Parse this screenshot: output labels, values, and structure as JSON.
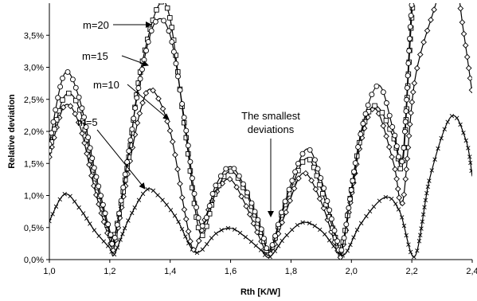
{
  "chart_data": {
    "type": "line",
    "title": "",
    "xlabel": "Rth [K/W]",
    "ylabel": "Relative deviation",
    "xlim": [
      1.0,
      2.4
    ],
    "ylim": [
      0.0,
      0.04
    ],
    "x_ticks": [
      "1,0",
      "1,2",
      "1,4",
      "1,6",
      "1,8",
      "2,0",
      "2,2",
      "2,4"
    ],
    "y_ticks": [
      "0,0%",
      "0,5%",
      "1,0%",
      "1,5%",
      "2,0%",
      "2,5%",
      "3,0%",
      "3,5%"
    ],
    "grid": false,
    "legend": "none",
    "series": [
      {
        "name": "m=5",
        "marker": "cross",
        "color": "#000000",
        "points": [
          [
            1.0,
            0.006
          ],
          [
            1.05,
            0.0102
          ],
          [
            1.1,
            0.008
          ],
          [
            1.15,
            0.0045
          ],
          [
            1.2,
            0.0018
          ],
          [
            1.215,
            0.0008
          ],
          [
            1.26,
            0.006
          ],
          [
            1.32,
            0.0108
          ],
          [
            1.36,
            0.01
          ],
          [
            1.42,
            0.0065
          ],
          [
            1.47,
            0.0018
          ],
          [
            1.5,
            0.0013
          ],
          [
            1.55,
            0.004
          ],
          [
            1.6,
            0.0049
          ],
          [
            1.65,
            0.0035
          ],
          [
            1.7,
            0.0015
          ],
          [
            1.73,
            0.0004
          ],
          [
            1.78,
            0.0035
          ],
          [
            1.84,
            0.0058
          ],
          [
            1.9,
            0.0045
          ],
          [
            1.95,
            0.0016
          ],
          [
            1.98,
            0.0009
          ],
          [
            2.03,
            0.0055
          ],
          [
            2.11,
            0.0097
          ],
          [
            2.16,
            0.0075
          ],
          [
            2.21,
            0.0005
          ],
          [
            2.26,
            0.0128
          ],
          [
            2.33,
            0.0223
          ],
          [
            2.38,
            0.0185
          ],
          [
            2.4,
            0.013
          ]
        ]
      },
      {
        "name": "m=10",
        "marker": "diamond",
        "color": "#000000",
        "points": [
          [
            1.0,
            0.016
          ],
          [
            1.05,
            0.024
          ],
          [
            1.1,
            0.021
          ],
          [
            1.15,
            0.011
          ],
          [
            1.2,
            0.003
          ],
          [
            1.215,
            0.002
          ],
          [
            1.25,
            0.011
          ],
          [
            1.3,
            0.023
          ],
          [
            1.34,
            0.0265
          ],
          [
            1.4,
            0.02
          ],
          [
            1.45,
            0.007
          ],
          [
            1.48,
            0.0015
          ],
          [
            1.52,
            0.007
          ],
          [
            1.56,
            0.011
          ],
          [
            1.6,
            0.0125
          ],
          [
            1.65,
            0.0085
          ],
          [
            1.7,
            0.003
          ],
          [
            1.73,
            0.0008
          ],
          [
            1.78,
            0.007
          ],
          [
            1.84,
            0.0135
          ],
          [
            1.9,
            0.009
          ],
          [
            1.95,
            0.002
          ],
          [
            1.97,
            0.0015
          ],
          [
            2.03,
            0.018
          ],
          [
            2.08,
            0.0235
          ],
          [
            2.14,
            0.015
          ],
          [
            2.17,
            0.009
          ],
          [
            2.21,
            0.028
          ],
          [
            2.28,
            0.04
          ],
          [
            2.33,
            0.048
          ],
          [
            2.37,
            0.036
          ],
          [
            2.4,
            0.026
          ]
        ]
      },
      {
        "name": "m=15",
        "marker": "square",
        "color": "#000000",
        "points": [
          [
            1.0,
            0.017
          ],
          [
            1.05,
            0.0255
          ],
          [
            1.1,
            0.0235
          ],
          [
            1.15,
            0.013
          ],
          [
            1.2,
            0.004
          ],
          [
            1.215,
            0.0035
          ],
          [
            1.26,
            0.015
          ],
          [
            1.3,
            0.029
          ],
          [
            1.36,
            0.0395
          ],
          [
            1.4,
            0.0375
          ],
          [
            1.45,
            0.02
          ],
          [
            1.5,
            0.004
          ],
          [
            1.55,
            0.0105
          ],
          [
            1.6,
            0.0138
          ],
          [
            1.65,
            0.0105
          ],
          [
            1.7,
            0.0045
          ],
          [
            1.73,
            0.0012
          ],
          [
            1.78,
            0.0085
          ],
          [
            1.85,
            0.0158
          ],
          [
            1.9,
            0.011
          ],
          [
            1.95,
            0.003
          ],
          [
            1.97,
            0.0022
          ],
          [
            2.03,
            0.019
          ],
          [
            2.08,
            0.024
          ],
          [
            2.14,
            0.019
          ],
          [
            2.17,
            0.015
          ],
          [
            2.2,
            0.038
          ],
          [
            2.24,
            0.06
          ]
        ]
      },
      {
        "name": "m=20",
        "marker": "circle",
        "color": "#000000",
        "points": [
          [
            1.0,
            0.018
          ],
          [
            1.05,
            0.029
          ],
          [
            1.1,
            0.025
          ],
          [
            1.15,
            0.014
          ],
          [
            1.2,
            0.0045
          ],
          [
            1.215,
            0.003
          ],
          [
            1.26,
            0.016
          ],
          [
            1.3,
            0.028
          ],
          [
            1.35,
            0.037
          ],
          [
            1.4,
            0.035
          ],
          [
            1.45,
            0.021
          ],
          [
            1.5,
            0.0055
          ],
          [
            1.55,
            0.0115
          ],
          [
            1.6,
            0.0145
          ],
          [
            1.65,
            0.011
          ],
          [
            1.7,
            0.005
          ],
          [
            1.73,
            0.0015
          ],
          [
            1.78,
            0.009
          ],
          [
            1.85,
            0.0172
          ],
          [
            1.9,
            0.0125
          ],
          [
            1.95,
            0.0035
          ],
          [
            1.97,
            0.002
          ],
          [
            2.03,
            0.0195
          ],
          [
            2.09,
            0.0272
          ],
          [
            2.14,
            0.02
          ],
          [
            2.17,
            0.016
          ],
          [
            2.2,
            0.04
          ],
          [
            2.24,
            0.062
          ]
        ]
      }
    ],
    "annotations": [
      {
        "text": "m=20"
      },
      {
        "text": "m=15"
      },
      {
        "text": "m=10"
      },
      {
        "text": "m=5"
      },
      {
        "text": "The smallest"
      },
      {
        "text": "deviations"
      }
    ]
  }
}
